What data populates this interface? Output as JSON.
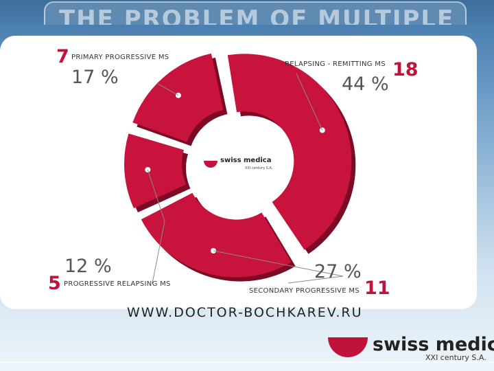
{
  "slide": {
    "title": "THE PROBLEM OF MULTIPLE",
    "url": "WWW.DOCTOR-BOCHKAREV.RU",
    "brand_name": "swiss medica",
    "brand_sub": "XXI century S.A.",
    "center_logo_name": "swiss medica",
    "center_logo_sub": "XXI century S.A.",
    "brand_color": "#c0123a"
  },
  "chart_data": {
    "type": "pie",
    "title": "",
    "series": [
      {
        "label": "PRIMARY PROGRESSIVE MS",
        "count": 7,
        "percent": 17,
        "count_text": "7",
        "percent_text": "17 %",
        "color": "#c8143d"
      },
      {
        "label": "RELAPSING - REMITTING MS",
        "count": 18,
        "percent": 44,
        "count_text": "18",
        "percent_text": "44 %",
        "color": "#c8143d"
      },
      {
        "label": "SECONDARY PROGRESSIVE MS",
        "count": 11,
        "percent": 27,
        "count_text": "11",
        "percent_text": "27 %",
        "color": "#c8143d"
      },
      {
        "label": "PROGRESSIVE RELAPSING MS",
        "count": 5,
        "percent": 12,
        "count_text": "5",
        "percent_text": "12 %",
        "color": "#c8143d"
      }
    ],
    "legend": "none"
  }
}
